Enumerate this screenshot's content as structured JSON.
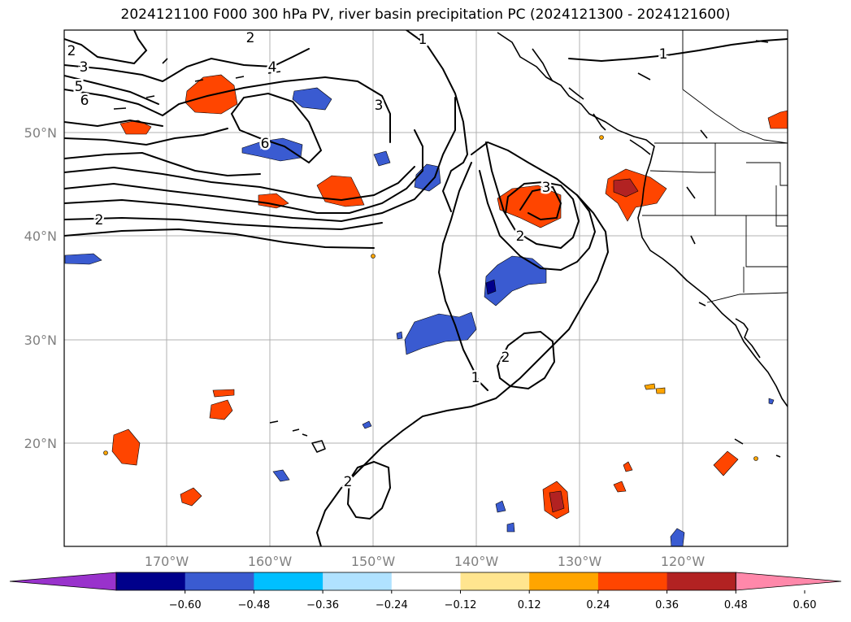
{
  "title": "2024121100 F000 300 hPa PV, river basin precipitation PC (2024121300 - 2024121600)",
  "map": {
    "lat_labels": [
      "50°N",
      "40°N",
      "30°N",
      "20°N"
    ],
    "lon_labels": [
      "170°W",
      "160°W",
      "150°W",
      "140°W",
      "130°W",
      "120°W"
    ],
    "contour_labels": [
      "1",
      "1",
      "1",
      "2",
      "2",
      "2",
      "2",
      "2",
      "2",
      "3",
      "3",
      "3",
      "4",
      "5",
      "6",
      "6"
    ]
  },
  "colorbar": {
    "colors": [
      "#9932cc",
      "#00008b",
      "#3a5bd1",
      "#00bfff",
      "#b0e2ff",
      "#ffffff",
      "#ffe58f",
      "#ffa500",
      "#ff4500",
      "#b22222",
      "#ff88aa"
    ],
    "tick_labels": [
      "−0.60",
      "−0.48",
      "−0.36",
      "−0.24",
      "−0.12",
      "0.12",
      "0.24",
      "0.36",
      "0.48",
      "0.60"
    ]
  }
}
